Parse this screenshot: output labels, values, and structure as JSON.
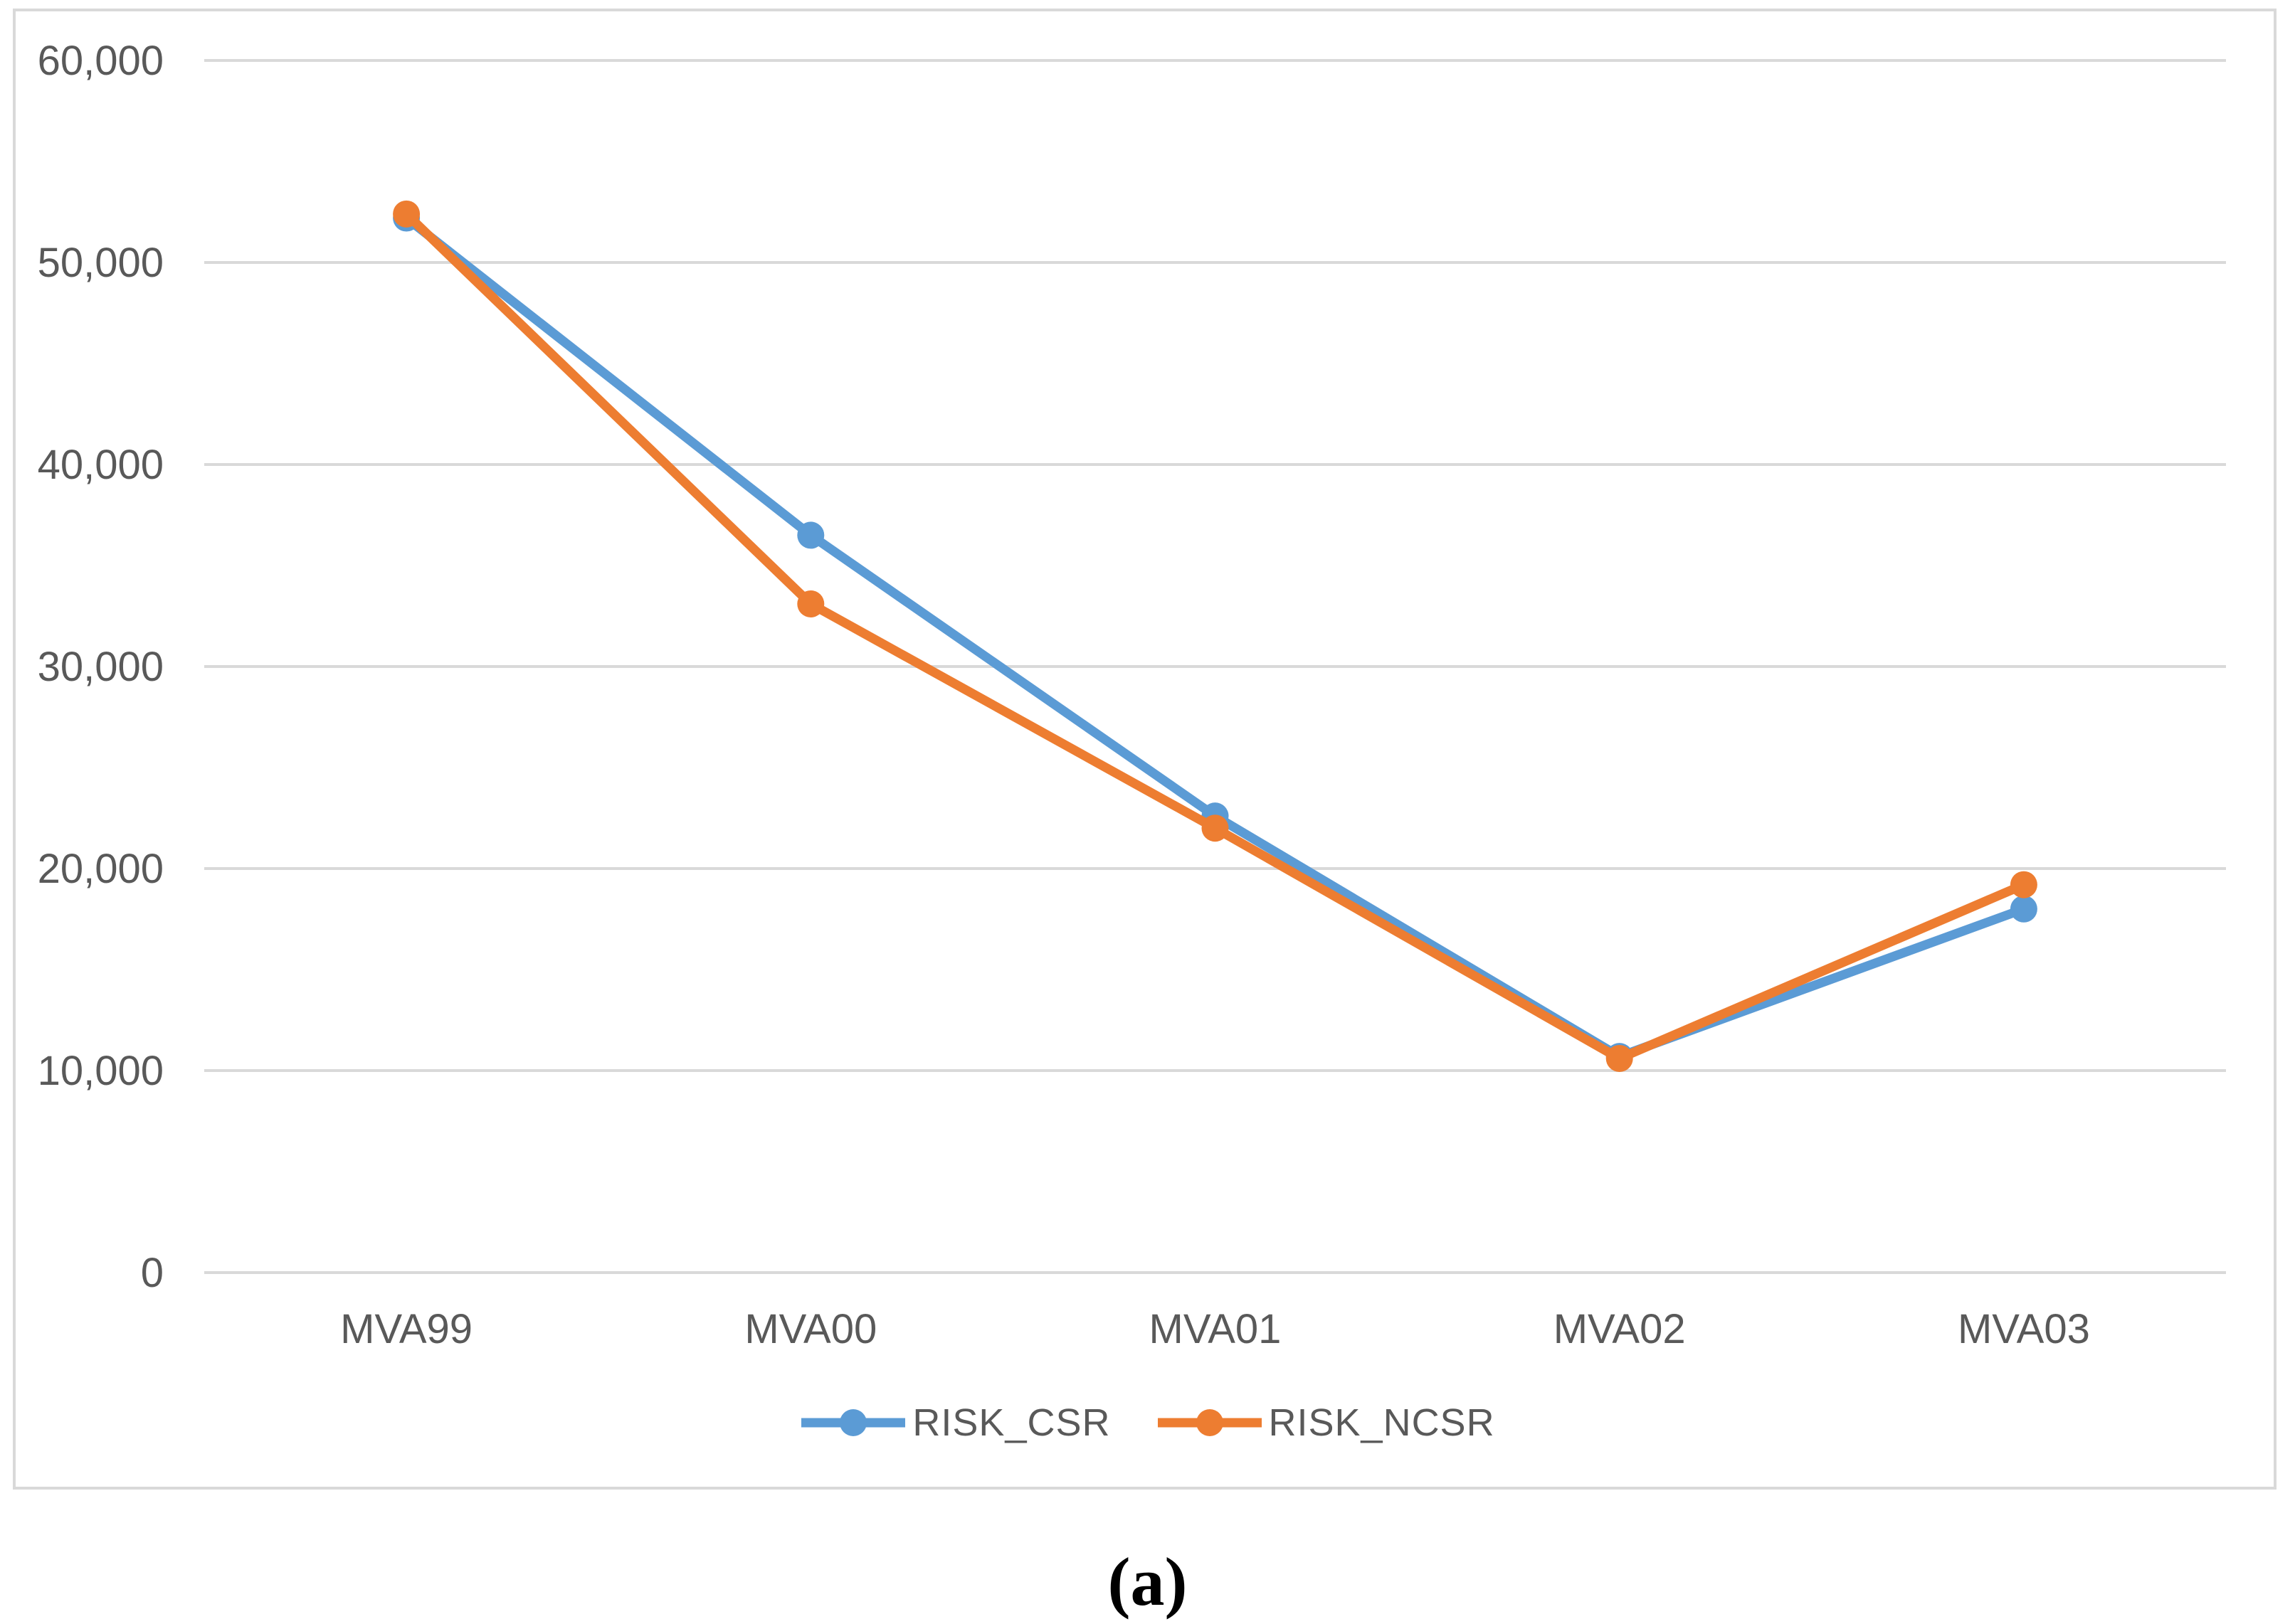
{
  "figure": {
    "caption": "(a)"
  },
  "chart_data": {
    "type": "line",
    "title": "",
    "xlabel": "",
    "ylabel": "",
    "categories": [
      "MVA99",
      "MVA00",
      "MVA01",
      "MVA02",
      "MVA03"
    ],
    "series": [
      {
        "name": "RISK_CSR",
        "color": "#5B9BD5",
        "values": [
          52200,
          36500,
          22600,
          10700,
          18000
        ]
      },
      {
        "name": "RISK_NCSR",
        "color": "#ED7D31",
        "values": [
          52400,
          33100,
          22000,
          10600,
          19200
        ]
      }
    ],
    "ylim": [
      0,
      60000
    ],
    "ytick_step": 10000,
    "ytick_labels": [
      "0",
      "10,000",
      "20,000",
      "30,000",
      "40,000",
      "50,000",
      "60,000"
    ],
    "grid": true,
    "legend_position": "bottom",
    "marker": "circle",
    "colors": {
      "gridline": "#D9D9D9",
      "axis_text": "#595959",
      "frame_border": "#D9D9D9",
      "background": "#FFFFFF"
    }
  }
}
